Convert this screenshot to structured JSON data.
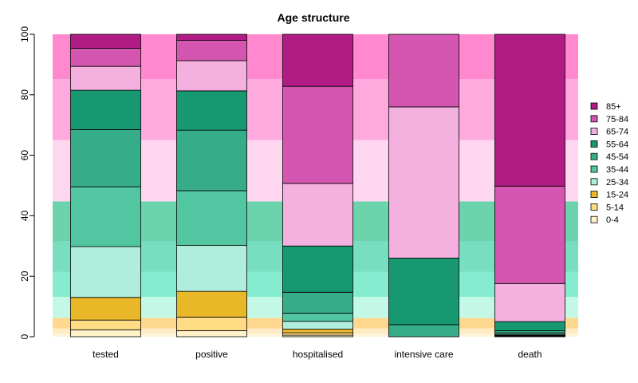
{
  "chart_data": {
    "type": "bar",
    "stacked": true,
    "title": "Age structure",
    "xlabel": "",
    "ylabel": "",
    "ylim": [
      0,
      100
    ],
    "y_ticks": [
      0,
      20,
      40,
      60,
      80,
      100
    ],
    "grid": false,
    "legend_position": "right",
    "categories": [
      "tested",
      "positive",
      "hospitalised",
      "intensive care",
      "death"
    ],
    "series": [
      {
        "name": "0-4",
        "color": "#fff1c8",
        "background": "#fff4dc",
        "values": [
          2.3,
          2.0,
          0.5,
          0.0,
          0.1
        ]
      },
      {
        "name": "5-14",
        "color": "#ffdc84",
        "background": "#ffebc4",
        "values": [
          3.2,
          4.5,
          0.8,
          0.0,
          0.2
        ]
      },
      {
        "name": "15-24",
        "color": "#e8b828",
        "background": "#ffd890",
        "values": [
          7.5,
          8.5,
          1.2,
          0.0,
          0.2
        ]
      },
      {
        "name": "25-34",
        "color": "#b0eedc",
        "background": "#c4f8e6",
        "values": [
          16.8,
          15.2,
          2.6,
          0.0,
          0.3
        ]
      },
      {
        "name": "35-44",
        "color": "#52c6a0",
        "background": "#86ecd0",
        "values": [
          19.8,
          18.1,
          2.7,
          0.0,
          0.5
        ]
      },
      {
        "name": "45-54",
        "color": "#36ac88",
        "background": "#78dec0",
        "values": [
          18.9,
          20.0,
          6.9,
          4.0,
          0.7
        ]
      },
      {
        "name": "55-64",
        "color": "#189870",
        "background": "#6cd4ac",
        "values": [
          13.0,
          13.0,
          15.3,
          22.0,
          3.0
        ]
      },
      {
        "name": "65-74",
        "color": "#f4b0de",
        "background": "#ffd6f0",
        "values": [
          7.9,
          10.0,
          20.7,
          50.0,
          12.6
        ]
      },
      {
        "name": "75-84",
        "color": "#d456b0",
        "background": "#ffaade",
        "values": [
          6.0,
          6.7,
          32.1,
          24.0,
          32.2
        ]
      },
      {
        "name": "85+",
        "color": "#b01c84",
        "background": "#ff88ce",
        "values": [
          4.6,
          2.0,
          17.2,
          0.0,
          50.2
        ]
      }
    ]
  }
}
